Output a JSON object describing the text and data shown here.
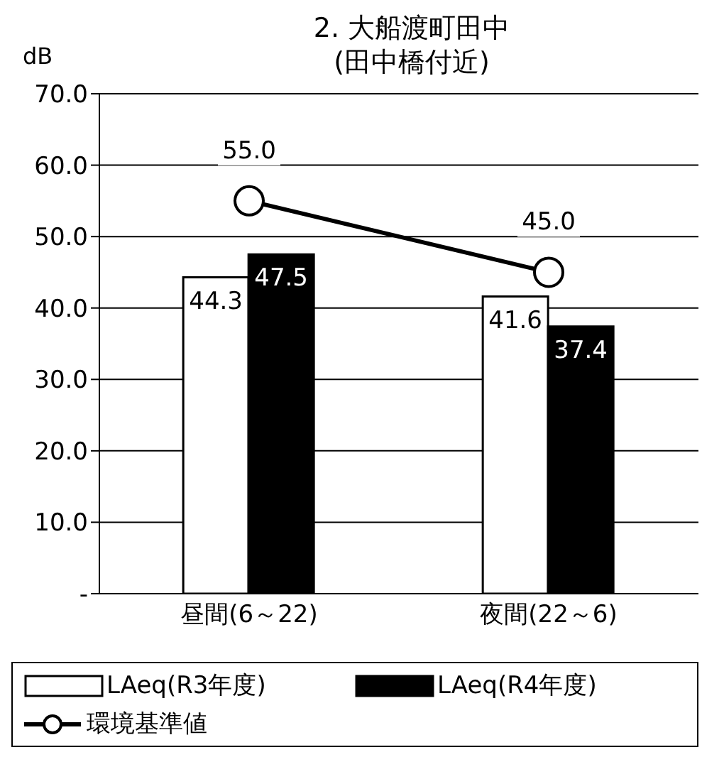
{
  "chart_data": {
    "type": "bar",
    "title": "2. 大船渡町田中",
    "subtitle": "(田中橋付近)",
    "ylabel": "dB",
    "categories": [
      "昼間(6～22)",
      "夜間(22～6)"
    ],
    "series": [
      {
        "name": "LAeq(R3年度)",
        "color": "#ffffff",
        "values": [
          44.3,
          41.6
        ]
      },
      {
        "name": "LAeq(R4年度)",
        "color": "#000000",
        "values": [
          47.5,
          37.4
        ]
      },
      {
        "name": "環境基準値",
        "type": "line",
        "color": "#000000",
        "values": [
          55.0,
          45.0
        ],
        "value_labels": [
          "55.0",
          "45.0"
        ],
        "marker": "circle"
      }
    ],
    "ylim": [
      0,
      70
    ],
    "yticks": [
      {
        "value": 0,
        "label": "-"
      },
      {
        "value": 10,
        "label": "10.0"
      },
      {
        "value": 20,
        "label": "20.0"
      },
      {
        "value": 30,
        "label": "30.0"
      },
      {
        "value": 40,
        "label": "40.0"
      },
      {
        "value": 50,
        "label": "50.0"
      },
      {
        "value": 60,
        "label": "60.0"
      },
      {
        "value": 70,
        "label": "70.0"
      }
    ],
    "grid": "y",
    "legend": "bottom",
    "data_labels": true
  }
}
